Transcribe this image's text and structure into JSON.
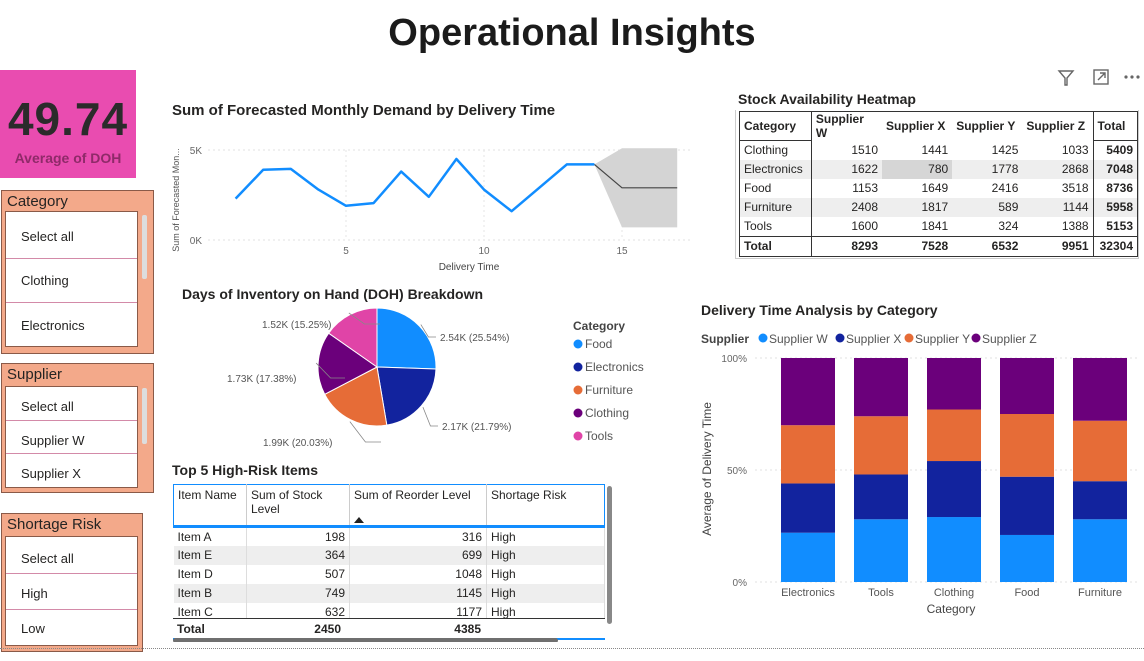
{
  "page_title": "Operational Insights",
  "kpi": {
    "value": "49.74",
    "label": "Average of DOH",
    "color": "#e94cb0"
  },
  "toolbar_icons": [
    "filter-icon",
    "focus-mode-icon",
    "more-options-icon"
  ],
  "slicers": [
    {
      "title": "Category",
      "items": [
        "Select all",
        "Clothing",
        "Electronics"
      ]
    },
    {
      "title": "Supplier",
      "items": [
        "Select all",
        "Supplier W",
        "Supplier X"
      ]
    },
    {
      "title": "Shortage Risk",
      "items": [
        "Select all",
        "High",
        "Low"
      ]
    }
  ],
  "line_chart": {
    "title": "Sum of Forecasted Monthly Demand by Delivery Time",
    "chart_data": {
      "type": "line",
      "title": "Sum of Forecasted Monthly Demand by Delivery Time",
      "xlabel": "Delivery Time",
      "ylabel": "Sum of Forecasted Mon...",
      "x": [
        1,
        2,
        3,
        4,
        5,
        6,
        7,
        8,
        9,
        10,
        11,
        12,
        13,
        14
      ],
      "y": [
        2300,
        3900,
        3950,
        2800,
        1900,
        2050,
        3800,
        2400,
        4500,
        2800,
        1600,
        2900,
        4200,
        4200
      ],
      "forecast": {
        "x": [
          14,
          15,
          16,
          17
        ],
        "y": [
          4200,
          2900,
          2900,
          2900
        ],
        "upper": [
          4200,
          5100,
          5100,
          5100
        ],
        "lower": [
          4200,
          700,
          700,
          700
        ]
      },
      "x_ticks": [
        "5",
        "10",
        "15"
      ],
      "y_ticks": [
        "0K",
        "5K"
      ],
      "xlim": [
        0,
        17.5
      ],
      "ylim": [
        0,
        5000
      ],
      "color": "#118dff"
    }
  },
  "heatmap": {
    "title": "Stock Availability Heatmap",
    "columns": [
      "Category",
      "Supplier W",
      "Supplier X",
      "Supplier Y",
      "Supplier Z",
      "Total"
    ],
    "rows": [
      [
        "Clothing",
        "1510",
        "1441",
        "1425",
        "1033",
        "5409"
      ],
      [
        "Electronics",
        "1622",
        "780",
        "1778",
        "2868",
        "7048"
      ],
      [
        "Food",
        "1153",
        "1649",
        "2416",
        "3518",
        "8736"
      ],
      [
        "Furniture",
        "2408",
        "1817",
        "589",
        "1144",
        "5958"
      ],
      [
        "Tools",
        "1600",
        "1841",
        "324",
        "1388",
        "5153"
      ]
    ],
    "total_row": [
      "Total",
      "8293",
      "7528",
      "6532",
      "9951",
      "32304"
    ],
    "highlight_color": "#d6d6d6"
  },
  "pie": {
    "title": "Days of Inventory on Hand (DOH) Breakdown",
    "legend_title": "Category",
    "chart_data": {
      "type": "pie",
      "slices": [
        {
          "name": "Food",
          "value": 2.54,
          "label": "2.54K (25.54%)",
          "color": "#118dff"
        },
        {
          "name": "Electronics",
          "value": 2.17,
          "label": "2.17K (21.79%)",
          "color": "#12239e"
        },
        {
          "name": "Furniture",
          "value": 1.99,
          "label": "1.99K (20.03%)",
          "color": "#e66c37"
        },
        {
          "name": "Clothing",
          "value": 1.73,
          "label": "1.73K (17.38%)",
          "color": "#6b007b"
        },
        {
          "name": "Tools",
          "value": 1.52,
          "label": "1.52K (15.25%)",
          "color": "#e044a7"
        }
      ]
    }
  },
  "risk_table": {
    "title": "Top 5 High-Risk Items",
    "columns": [
      "Item Name",
      "Sum of Stock Level",
      "Sum of Reorder Level",
      "Shortage Risk"
    ],
    "rows": [
      [
        "Item A",
        "198",
        "316",
        "High"
      ],
      [
        "Item E",
        "364",
        "699",
        "High"
      ],
      [
        "Item D",
        "507",
        "1048",
        "High"
      ],
      [
        "Item B",
        "749",
        "1145",
        "High"
      ],
      [
        "Item C",
        "632",
        "1177",
        "High"
      ]
    ],
    "total": [
      "Total",
      "2450",
      "4385",
      ""
    ]
  },
  "stacked_bar": {
    "title": "Delivery Time Analysis by Category",
    "chart_data": {
      "type": "bar",
      "stacked": "100%",
      "title": "Delivery Time Analysis by Category",
      "xlabel": "Category",
      "ylabel": "Average of Delivery Time",
      "legend_title": "Supplier",
      "categories": [
        "Electronics",
        "Tools",
        "Clothing",
        "Food",
        "Furniture"
      ],
      "series": [
        {
          "name": "Supplier W",
          "color": "#118dff",
          "values": [
            22,
            28,
            29,
            21,
            28
          ]
        },
        {
          "name": "Supplier X",
          "color": "#12239e",
          "values": [
            22,
            20,
            25,
            26,
            17
          ]
        },
        {
          "name": "Supplier Y",
          "color": "#e66c37",
          "values": [
            26,
            26,
            23,
            28,
            27
          ]
        },
        {
          "name": "Supplier Z",
          "color": "#6b007b",
          "values": [
            30,
            26,
            23,
            25,
            28
          ]
        }
      ],
      "y_ticks": [
        "0%",
        "50%",
        "100%"
      ],
      "ylim": [
        0,
        100
      ]
    }
  }
}
